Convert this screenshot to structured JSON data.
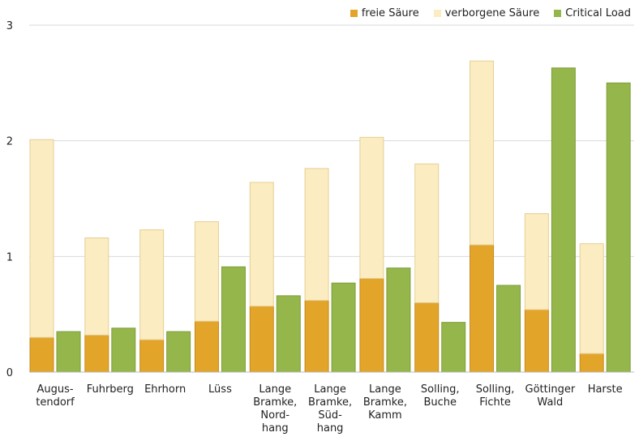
{
  "chart_data": {
    "type": "bar",
    "ylim": [
      0,
      3
    ],
    "yticks": [
      0,
      1,
      2,
      3
    ],
    "grid": true,
    "legend_position": "top-right",
    "categories": [
      [
        "Augus-",
        "tendorf"
      ],
      [
        "Fuhrberg"
      ],
      [
        "Ehrhorn"
      ],
      [
        "Lüss"
      ],
      [
        "Lange",
        "Bramke,",
        "Nord-",
        "hang"
      ],
      [
        "Lange",
        "Bramke,",
        "Süd-",
        "hang"
      ],
      [
        "Lange",
        "Bramke,",
        "Kamm"
      ],
      [
        "Solling,",
        "Buche"
      ],
      [
        "Solling,",
        "Fichte"
      ],
      [
        "Göttinger",
        "Wald"
      ],
      [
        "Harste"
      ]
    ],
    "series": [
      {
        "name": "freie Säure",
        "color": "#e2a52a",
        "stack": "acid",
        "values": [
          0.3,
          0.32,
          0.28,
          0.44,
          0.57,
          0.62,
          0.81,
          0.6,
          1.1,
          0.54,
          0.16
        ]
      },
      {
        "name": "verborgene Säure",
        "color": "#fbecc2",
        "stack": "acid",
        "values": [
          1.71,
          0.84,
          0.95,
          0.86,
          1.07,
          1.14,
          1.22,
          1.2,
          1.59,
          0.83,
          0.95
        ]
      },
      {
        "name": "Critical Load",
        "color": "#94b64a",
        "stack": "load",
        "values": [
          0.35,
          0.38,
          0.35,
          0.91,
          0.66,
          0.77,
          0.9,
          0.43,
          0.75,
          2.63,
          2.5
        ]
      }
    ]
  }
}
